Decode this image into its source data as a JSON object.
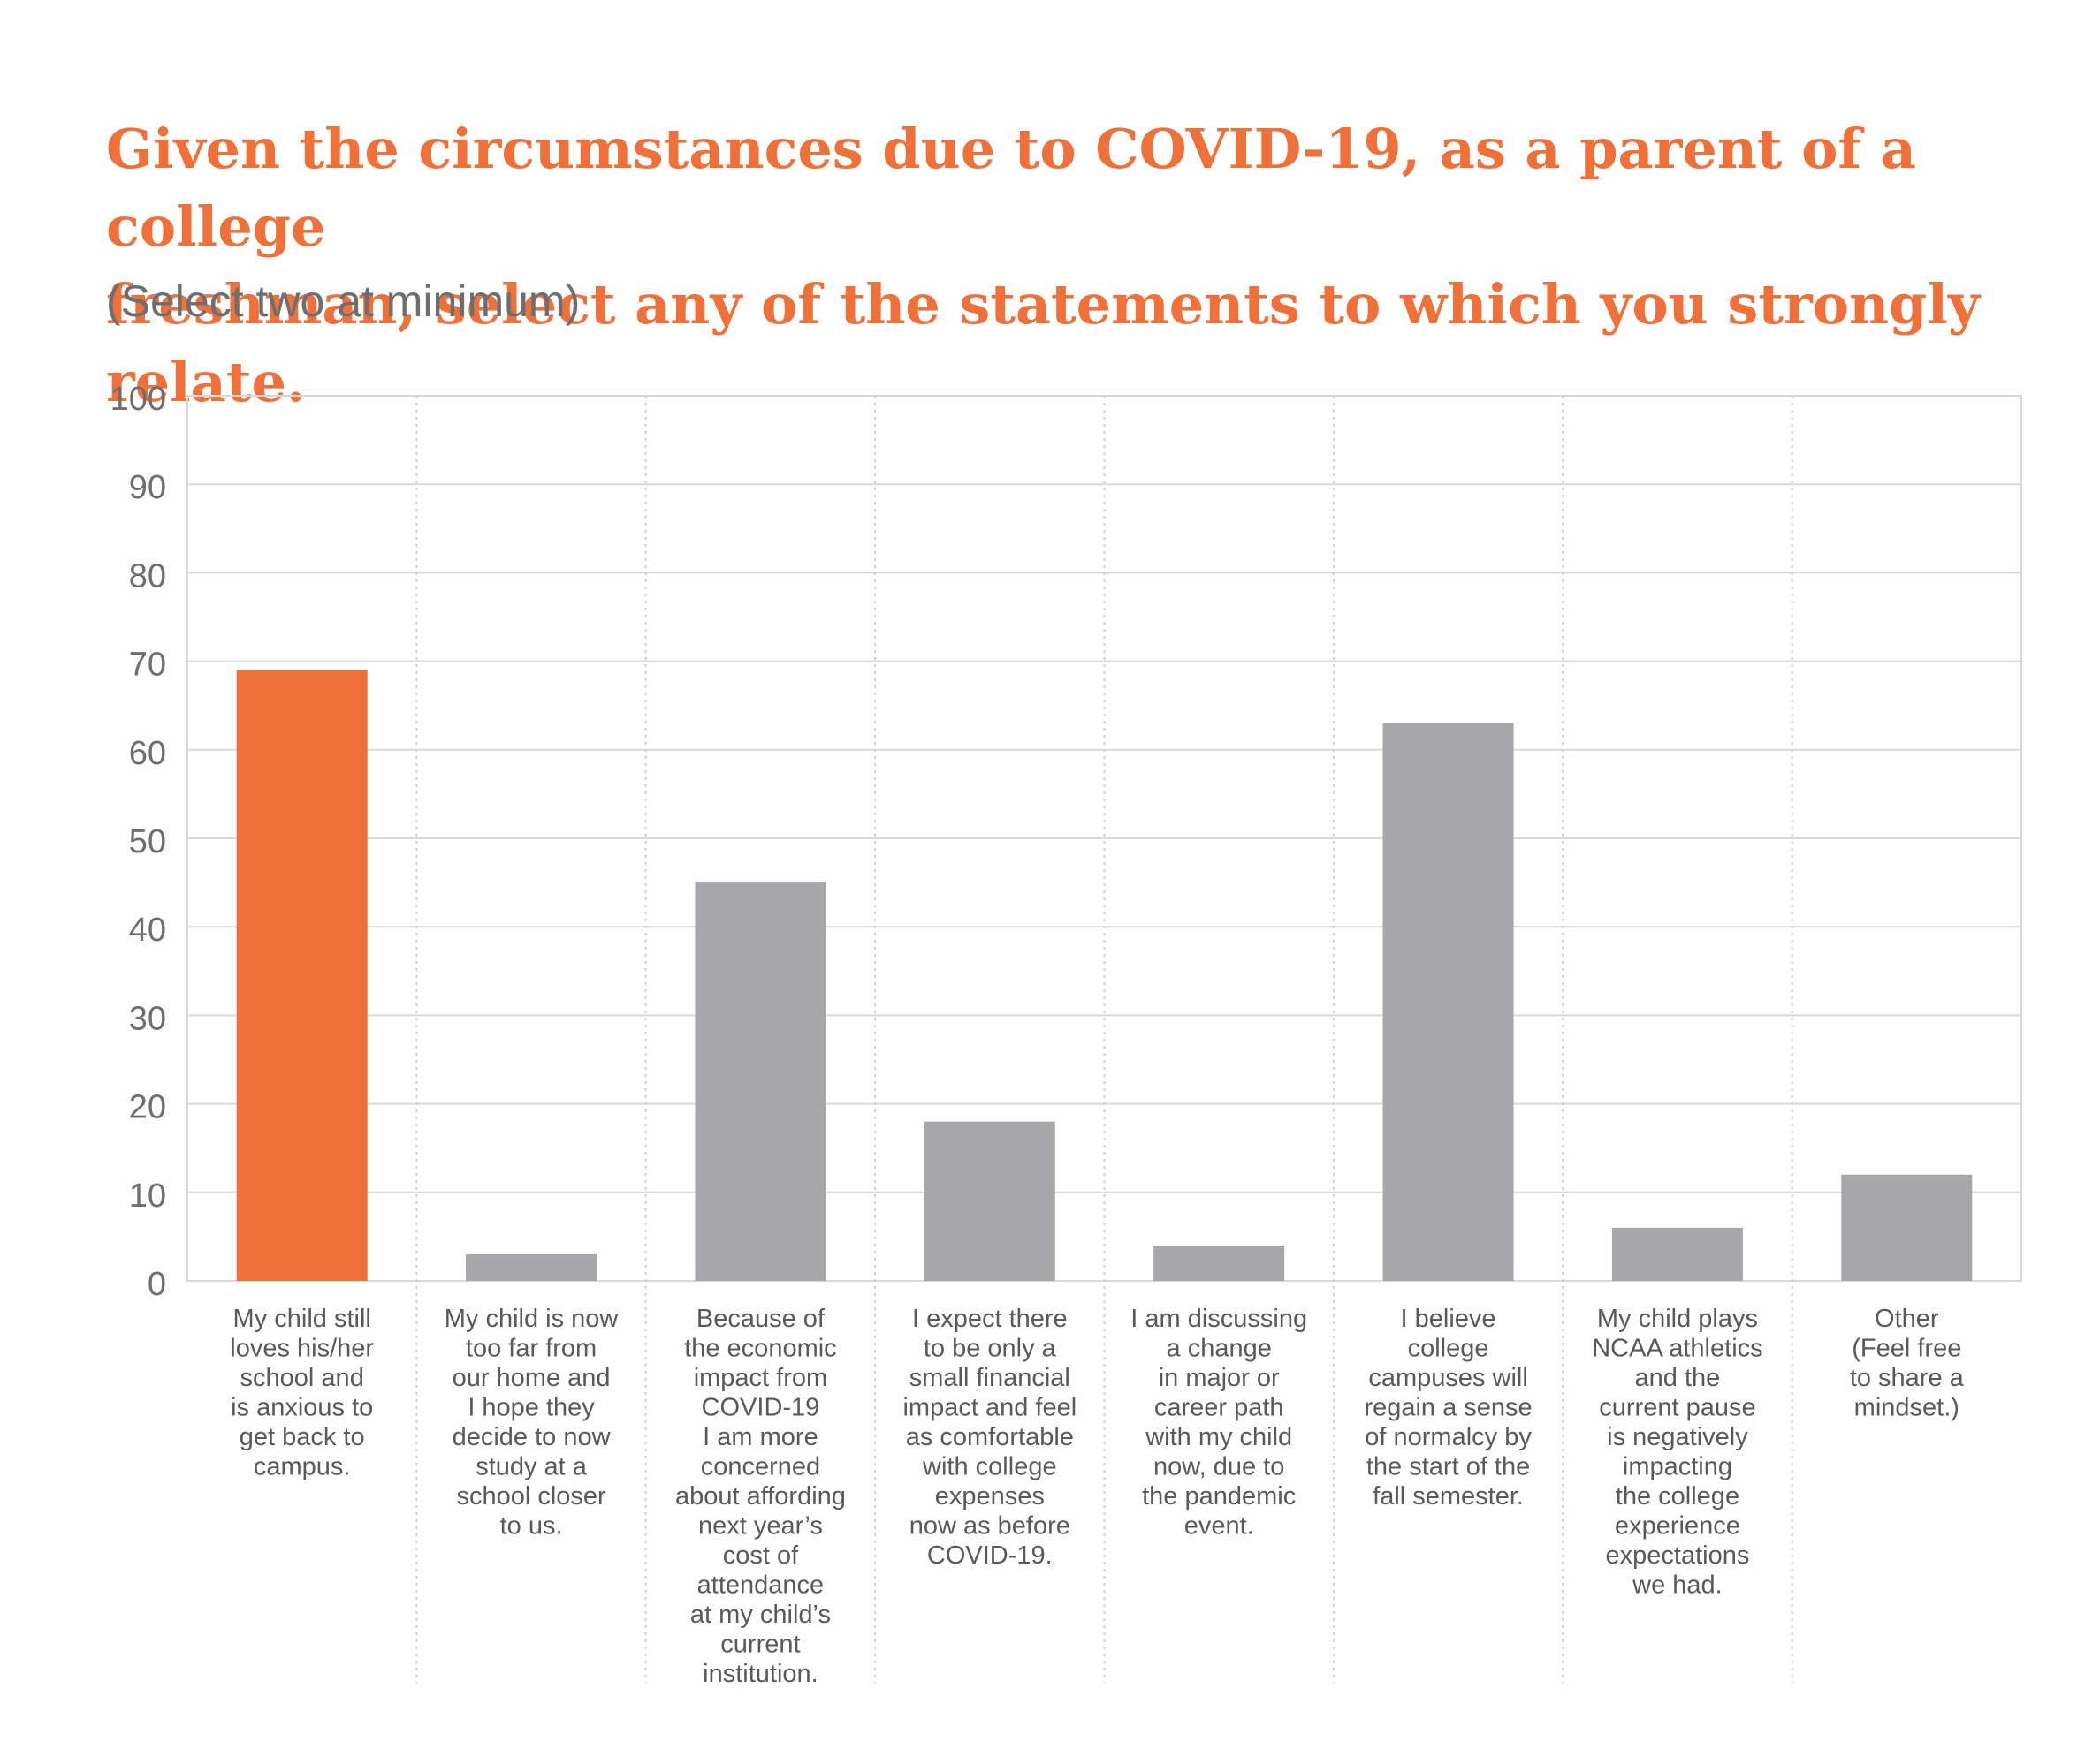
{
  "title_line1": "Given the circumstances due to COVID-19, as a parent of a college",
  "title_line2": "freshman, select any of the statements to which you strongly relate.",
  "subtitle": "(Select two at minimum)",
  "colors": {
    "accent": "#f07039",
    "bar": "#a7a7aa",
    "text": "#58595b",
    "grid": "#d9d9d9"
  },
  "chart_data": {
    "type": "bar",
    "ylim": [
      0,
      100
    ],
    "yticks": [
      0,
      10,
      20,
      30,
      40,
      50,
      60,
      70,
      80,
      90,
      100
    ],
    "grid": true,
    "highlight_index": 0,
    "categories": [
      [
        "My child still",
        "loves his/her",
        "school and",
        "is anxious to",
        "get back to",
        "campus."
      ],
      [
        "My child is now",
        "too far from",
        "our home and",
        "I hope they",
        "decide to now",
        "study at a",
        "school closer",
        "to us."
      ],
      [
        "Because of",
        "the economic",
        "impact from",
        "COVID-19",
        "I am more",
        "concerned",
        "about affording",
        "next year’s",
        "cost of",
        "attendance",
        "at my child’s",
        "current",
        "institution."
      ],
      [
        "I expect there",
        "to be only a",
        "small financial",
        "impact and feel",
        "as comfortable",
        "with college",
        "expenses",
        "now as before",
        "COVID-19."
      ],
      [
        "I am discussing",
        "a change",
        "in major or",
        "career path",
        "with my child",
        "now, due to",
        "the pandemic",
        "event."
      ],
      [
        "I believe",
        "college",
        "campuses will",
        "regain a sense",
        "of normalcy by",
        "the start of the",
        "fall semester."
      ],
      [
        "My child plays",
        "NCAA athletics",
        "and the",
        "current pause",
        "is negatively",
        "impacting",
        "the college",
        "experience",
        "expectations",
        "we had."
      ],
      [
        "Other",
        "(Feel free",
        "to share a",
        "mindset.)"
      ]
    ],
    "values": [
      69,
      3,
      45,
      18,
      4,
      63,
      6,
      12
    ]
  }
}
